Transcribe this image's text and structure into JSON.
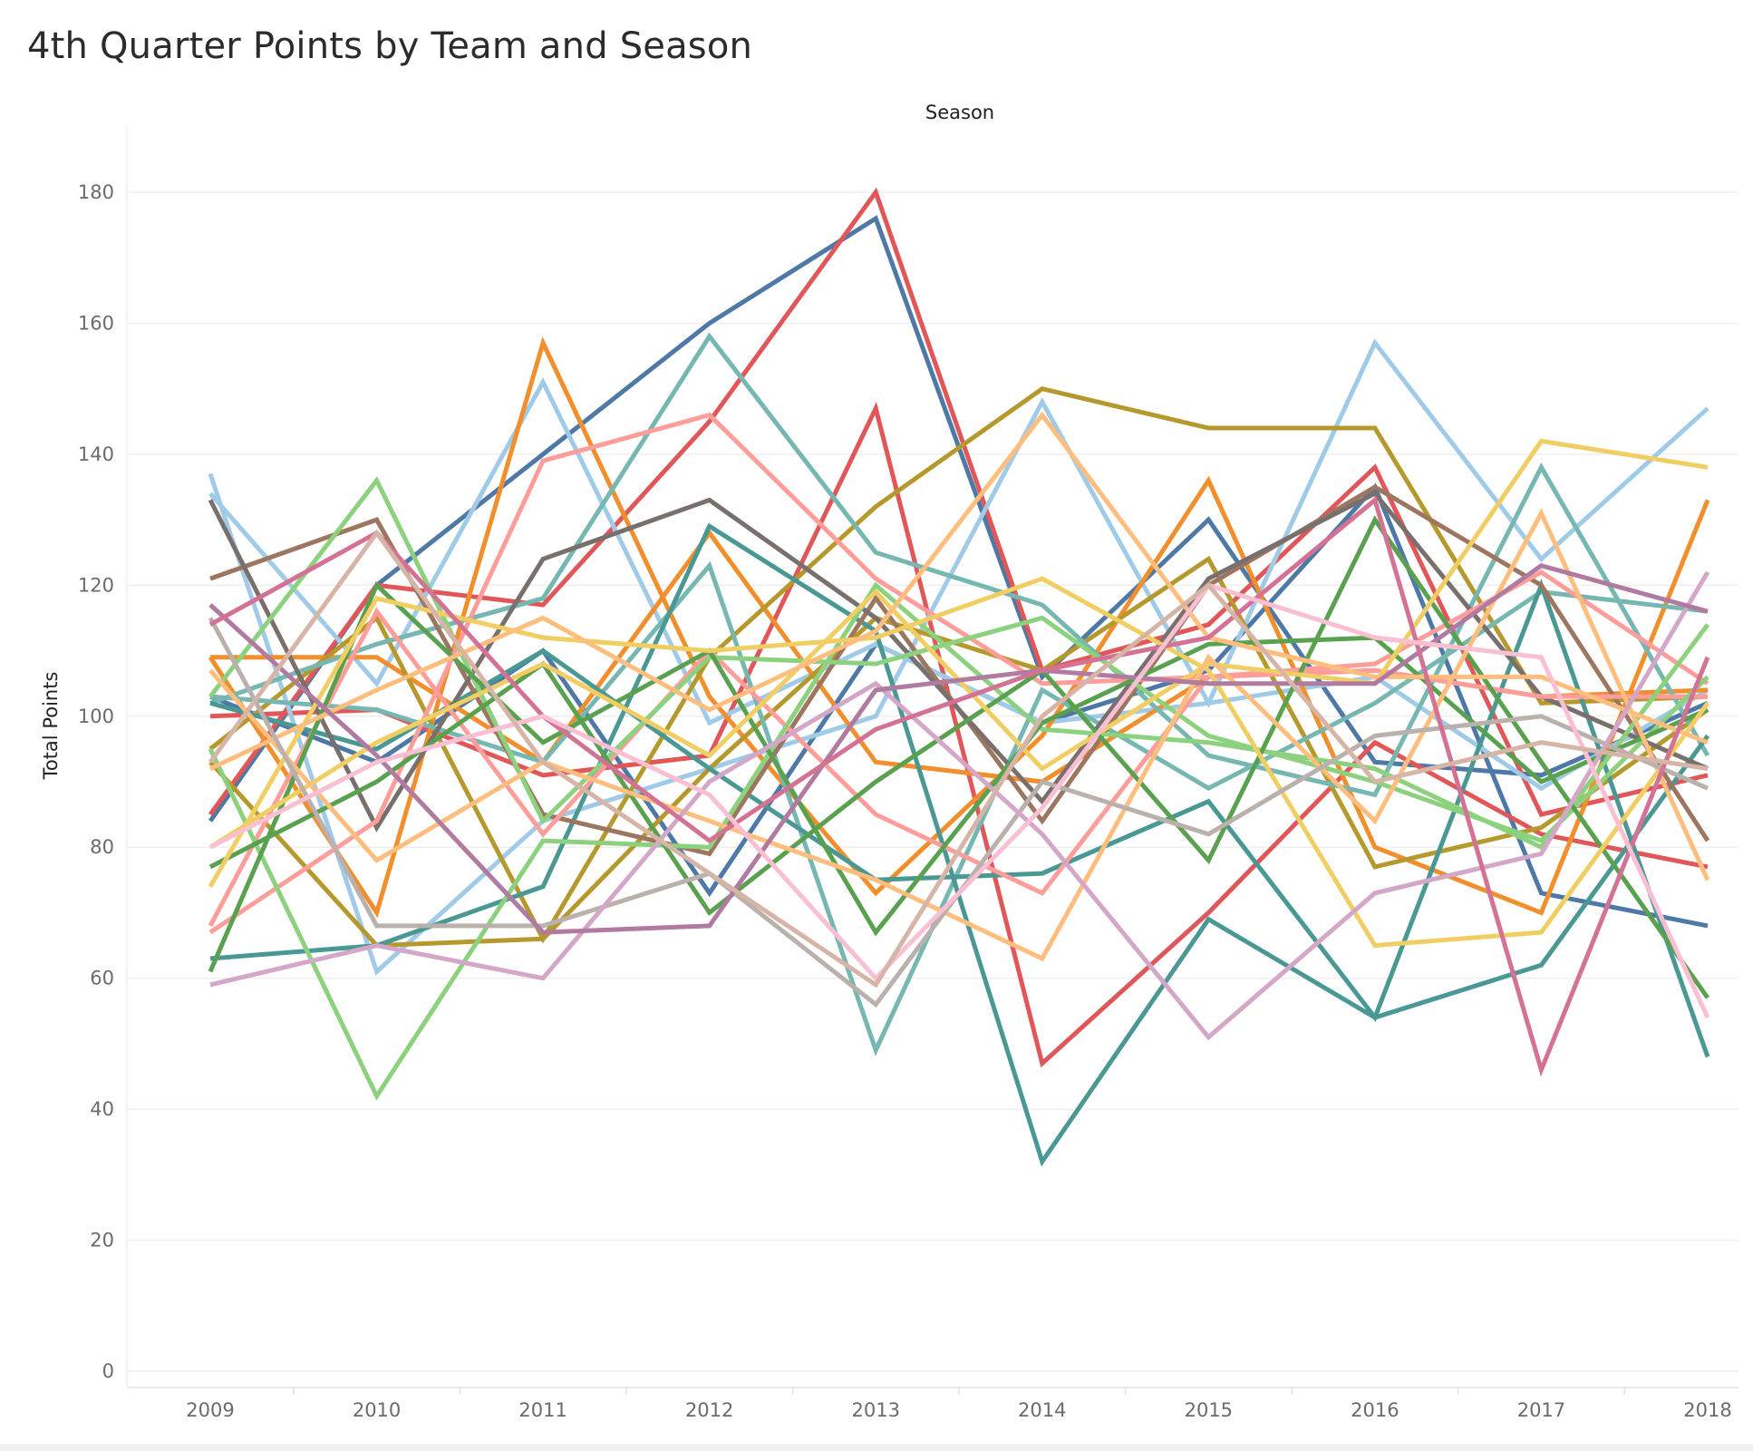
{
  "chart_data": {
    "type": "line",
    "title": "4th Quarter Points by Team and Season",
    "column_header": "Season",
    "xlabel": "",
    "ylabel": "Total Points",
    "categories": [
      "2009",
      "2010",
      "2011",
      "2012",
      "2013",
      "2014",
      "2015",
      "2016",
      "2017",
      "2018"
    ],
    "ylim": [
      0,
      185
    ],
    "yticks": [
      0,
      20,
      40,
      60,
      80,
      100,
      120,
      140,
      160,
      180
    ],
    "grid": true,
    "legend": "none",
    "series": [
      {
        "color": "#4e79a7",
        "values": [
          84,
          120,
          140,
          160,
          176,
          106,
          130,
          93,
          91,
          102
        ]
      },
      {
        "color": "#4e79a7",
        "values": [
          103,
          93,
          110,
          73,
          111,
          99,
          107,
          135,
          73,
          68
        ]
      },
      {
        "color": "#e15759",
        "values": [
          85,
          120,
          117,
          145,
          180,
          107,
          114,
          138,
          85,
          91
        ]
      },
      {
        "color": "#e15759",
        "values": [
          100,
          101,
          91,
          94,
          147,
          47,
          70,
          96,
          82,
          77
        ]
      },
      {
        "color": "#a0cbe8",
        "values": [
          137,
          61,
          84,
          92,
          100,
          148,
          102,
          157,
          124,
          147
        ]
      },
      {
        "color": "#a0cbe8",
        "values": [
          134,
          105,
          151,
          99,
          111,
          99,
          102,
          106,
          89,
          104
        ]
      },
      {
        "color": "#f28e2b",
        "values": [
          109,
          70,
          157,
          103,
          73,
          97,
          136,
          80,
          70,
          133
        ]
      },
      {
        "color": "#f28e2b",
        "values": [
          109,
          109,
          93,
          128,
          93,
          90,
          106,
          107,
          103,
          104
        ]
      },
      {
        "color": "#b6992d",
        "values": [
          95,
          115,
          66,
          109,
          132,
          150,
          144,
          144,
          102,
          103
        ]
      },
      {
        "color": "#b6992d",
        "values": [
          93,
          65,
          66,
          92,
          115,
          107,
          124,
          77,
          83,
          101
        ]
      },
      {
        "color": "#76b7b2",
        "values": [
          102,
          111,
          118,
          158,
          125,
          117,
          94,
          88,
          138,
          94
        ]
      },
      {
        "color": "#76b7b2",
        "values": [
          103,
          101,
          93,
          123,
          49,
          104,
          89,
          102,
          119,
          116
        ]
      },
      {
        "color": "#499894",
        "values": [
          63,
          65,
          74,
          129,
          113,
          32,
          69,
          54,
          62,
          97
        ]
      },
      {
        "color": "#499894",
        "values": [
          102,
          95,
          110,
          92,
          75,
          76,
          87,
          54,
          120,
          48
        ]
      },
      {
        "color": "#9d7660",
        "values": [
          121,
          130,
          85,
          79,
          118,
          84,
          120,
          135,
          120,
          81
        ]
      },
      {
        "color": "#79706e",
        "values": [
          133,
          83,
          124,
          133,
          115,
          87,
          121,
          134,
          103,
          92
        ]
      },
      {
        "color": "#ff9d9a",
        "values": [
          67,
          84,
          139,
          146,
          121,
          105,
          106,
          108,
          122,
          105
        ]
      },
      {
        "color": "#ff9d9a",
        "values": [
          68,
          116,
          82,
          110,
          85,
          73,
          106,
          107,
          103,
          103
        ]
      },
      {
        "color": "#8cd17d",
        "values": [
          95,
          42,
          81,
          80,
          120,
          98,
          96,
          92,
          80,
          114
        ]
      },
      {
        "color": "#8cd17d",
        "values": [
          103,
          136,
          84,
          109,
          108,
          115,
          97,
          90,
          81,
          106
        ]
      },
      {
        "color": "#59a14f",
        "values": [
          77,
          90,
          108,
          70,
          90,
          107,
          78,
          130,
          93,
          57
        ]
      },
      {
        "color": "#59a14f",
        "values": [
          61,
          120,
          96,
          110,
          67,
          99,
          111,
          112,
          90,
          101
        ]
      },
      {
        "color": "#f1ce63",
        "values": [
          74,
          118,
          112,
          110,
          112,
          121,
          107,
          65,
          67,
          102
        ]
      },
      {
        "color": "#f1ce63",
        "values": [
          80,
          96,
          108,
          94,
          119,
          92,
          108,
          105,
          142,
          138
        ]
      },
      {
        "color": "#ffbe7d",
        "values": [
          107,
          78,
          93,
          84,
          75,
          63,
          109,
          84,
          131,
          75
        ]
      },
      {
        "color": "#ffbe7d",
        "values": [
          92,
          104,
          115,
          101,
          113,
          146,
          112,
          106,
          106,
          96
        ]
      },
      {
        "color": "#bab0ac",
        "values": [
          115,
          68,
          68,
          76,
          56,
          90,
          82,
          97,
          100,
          89
        ]
      },
      {
        "color": "#d4a6c8",
        "values": [
          59,
          65,
          60,
          90,
          105,
          82,
          51,
          73,
          79,
          122
        ]
      },
      {
        "color": "#b07aa1",
        "values": [
          117,
          94,
          67,
          68,
          104,
          107,
          105,
          105,
          123,
          116
        ]
      },
      {
        "color": "#d37295",
        "values": [
          114,
          128,
          100,
          81,
          98,
          107,
          112,
          133,
          46,
          109
        ]
      },
      {
        "color": "#fabfd2",
        "values": [
          80,
          93,
          100,
          88,
          60,
          86,
          120,
          112,
          109,
          54
        ]
      },
      {
        "color": "#d7b5a6",
        "values": [
          93,
          128,
          93,
          76,
          59,
          100,
          120,
          90,
          96,
          92
        ]
      }
    ]
  }
}
